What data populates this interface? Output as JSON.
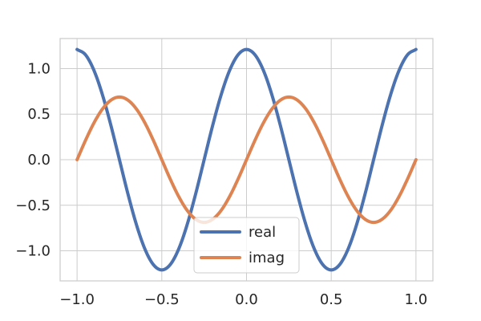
{
  "chart_data": {
    "type": "line",
    "title": "",
    "xlabel": "",
    "ylabel": "",
    "xlim": [
      -1.1,
      1.1
    ],
    "ylim": [
      -1.33,
      1.33
    ],
    "grid": true,
    "legend_position": "lower center",
    "x_ticks": [
      -1.0,
      -0.5,
      0.0,
      0.5,
      1.0
    ],
    "x_tick_labels": [
      "−1.0",
      "−0.5",
      "0.0",
      "0.5",
      "1.0"
    ],
    "y_ticks": [
      1.0,
      0.5,
      0.0,
      -0.5,
      -1.0
    ],
    "y_tick_labels": [
      "1.0",
      "0.5",
      "0.0",
      "−0.5",
      "−1.0"
    ],
    "x": [
      -1.0,
      -0.95,
      -0.9,
      -0.85,
      -0.8,
      -0.75,
      -0.7,
      -0.65,
      -0.6,
      -0.55,
      -0.5,
      -0.45,
      -0.4,
      -0.35,
      -0.3,
      -0.25,
      -0.2,
      -0.15,
      -0.1,
      -0.05,
      0.0,
      0.05,
      0.1,
      0.15,
      0.2,
      0.25,
      0.3,
      0.35,
      0.4,
      0.45,
      0.5,
      0.55,
      0.6,
      0.65,
      0.7,
      0.75,
      0.8,
      0.85,
      0.9,
      0.95,
      1.0
    ],
    "series": [
      {
        "name": "real",
        "color": "#4c72b0",
        "values": [
          1.21,
          1.151,
          0.979,
          0.711,
          0.374,
          0.0,
          -0.374,
          -0.711,
          -0.979,
          -1.151,
          -1.21,
          -1.151,
          -0.979,
          -0.711,
          -0.374,
          0.0,
          0.374,
          0.711,
          0.979,
          1.151,
          1.21,
          1.151,
          0.979,
          0.711,
          0.374,
          0.0,
          -0.374,
          -0.711,
          -0.979,
          -1.151,
          -1.21,
          -1.151,
          -0.979,
          -0.711,
          -0.374,
          0.0,
          0.374,
          0.711,
          0.979,
          1.151,
          1.21
        ]
      },
      {
        "name": "imag",
        "color": "#dd8452",
        "values": [
          0.0,
          0.213,
          0.405,
          0.557,
          0.654,
          0.688,
          0.654,
          0.557,
          0.405,
          0.213,
          0.0,
          -0.213,
          -0.405,
          -0.557,
          -0.654,
          -0.688,
          -0.654,
          -0.557,
          -0.405,
          -0.213,
          0.0,
          0.213,
          0.405,
          0.557,
          0.654,
          0.688,
          0.654,
          0.557,
          0.405,
          0.213,
          0.0,
          -0.213,
          -0.405,
          -0.557,
          -0.654,
          -0.688,
          -0.654,
          -0.557,
          -0.405,
          -0.213,
          0.0
        ]
      }
    ]
  }
}
